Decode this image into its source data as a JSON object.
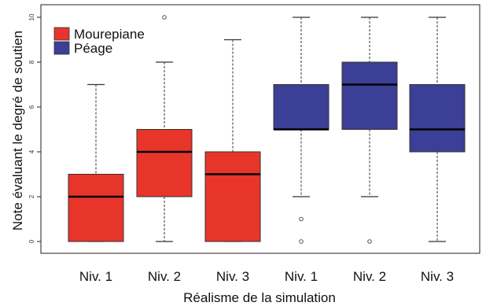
{
  "chart_data": {
    "type": "boxplot",
    "title": "",
    "xlabel": "Réalisme de la simulation",
    "ylabel": "Note évaluant le degré de soutien",
    "ylim": [
      0,
      10
    ],
    "yticks": [
      0,
      2,
      4,
      6,
      8,
      10
    ],
    "categories": [
      "Niv. 1",
      "Niv. 2",
      "Niv. 3",
      "Niv. 1",
      "Niv. 2",
      "Niv. 3"
    ],
    "legend": {
      "placement": "top-left",
      "entries": [
        {
          "name": "Mourepiane",
          "color": "#e8352a"
        },
        {
          "name": "Péage",
          "color": "#3c3f96"
        }
      ]
    },
    "series": [
      {
        "name": "Mourepiane",
        "color": "#e8352a",
        "boxes": [
          {
            "category": "Niv. 1",
            "whisker_low": 0,
            "q1": 0,
            "median": 2,
            "q3": 3,
            "whisker_high": 7,
            "outliers": []
          },
          {
            "category": "Niv. 2",
            "whisker_low": 0,
            "q1": 2,
            "median": 4,
            "q3": 5,
            "whisker_high": 8,
            "outliers": [
              10
            ]
          },
          {
            "category": "Niv. 3",
            "whisker_low": 0,
            "q1": 0,
            "median": 3,
            "q3": 4,
            "whisker_high": 9,
            "outliers": []
          }
        ]
      },
      {
        "name": "Péage",
        "color": "#3c3f96",
        "boxes": [
          {
            "category": "Niv. 1",
            "whisker_low": 2,
            "q1": 5,
            "median": 5,
            "q3": 7,
            "whisker_high": 10,
            "outliers": [
              1,
              0
            ]
          },
          {
            "category": "Niv. 2",
            "whisker_low": 2,
            "q1": 5,
            "median": 7,
            "q3": 8,
            "whisker_high": 10,
            "outliers": [
              0
            ]
          },
          {
            "category": "Niv. 3",
            "whisker_low": 0,
            "q1": 4,
            "median": 5,
            "q3": 7,
            "whisker_high": 10,
            "outliers": []
          }
        ]
      }
    ]
  }
}
